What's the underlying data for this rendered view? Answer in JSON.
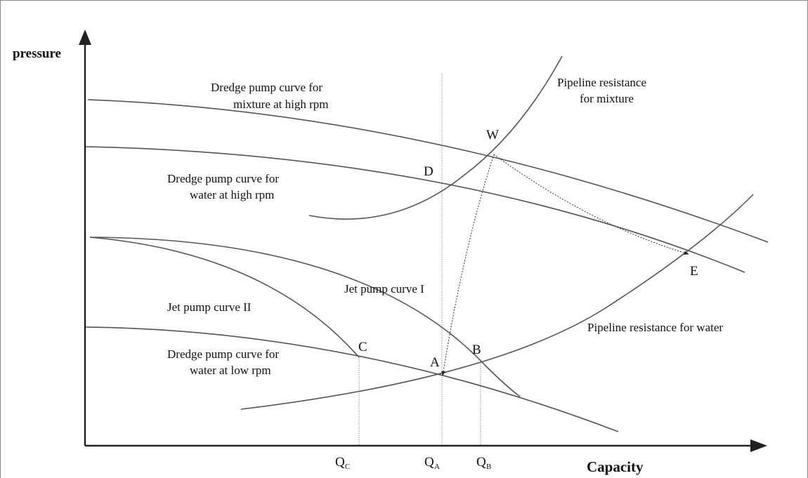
{
  "axes": {
    "y_label": "pressure",
    "x_label": "Capacity"
  },
  "curve_labels": [
    {
      "lines": [
        "Dredge pump curve for",
        "mixture at high rpm"
      ]
    },
    {
      "lines": [
        "Pipeline resistance",
        "for mixture"
      ]
    },
    {
      "lines": [
        "Dredge pump curve for",
        "water at high rpm"
      ]
    },
    {
      "lines": [
        "Jet pump curve I"
      ]
    },
    {
      "lines": [
        "Jet pump curve II"
      ]
    },
    {
      "lines": [
        "Dredge pump curve for",
        "water at low rpm"
      ]
    },
    {
      "lines": [
        "Pipeline resistance for water"
      ]
    }
  ],
  "points": [
    "W",
    "D",
    "E",
    "A",
    "B",
    "C"
  ],
  "capacities": [
    {
      "main": "Q",
      "sub": "C"
    },
    {
      "main": "Q",
      "sub": "A"
    },
    {
      "main": "Q",
      "sub": "B"
    }
  ]
}
